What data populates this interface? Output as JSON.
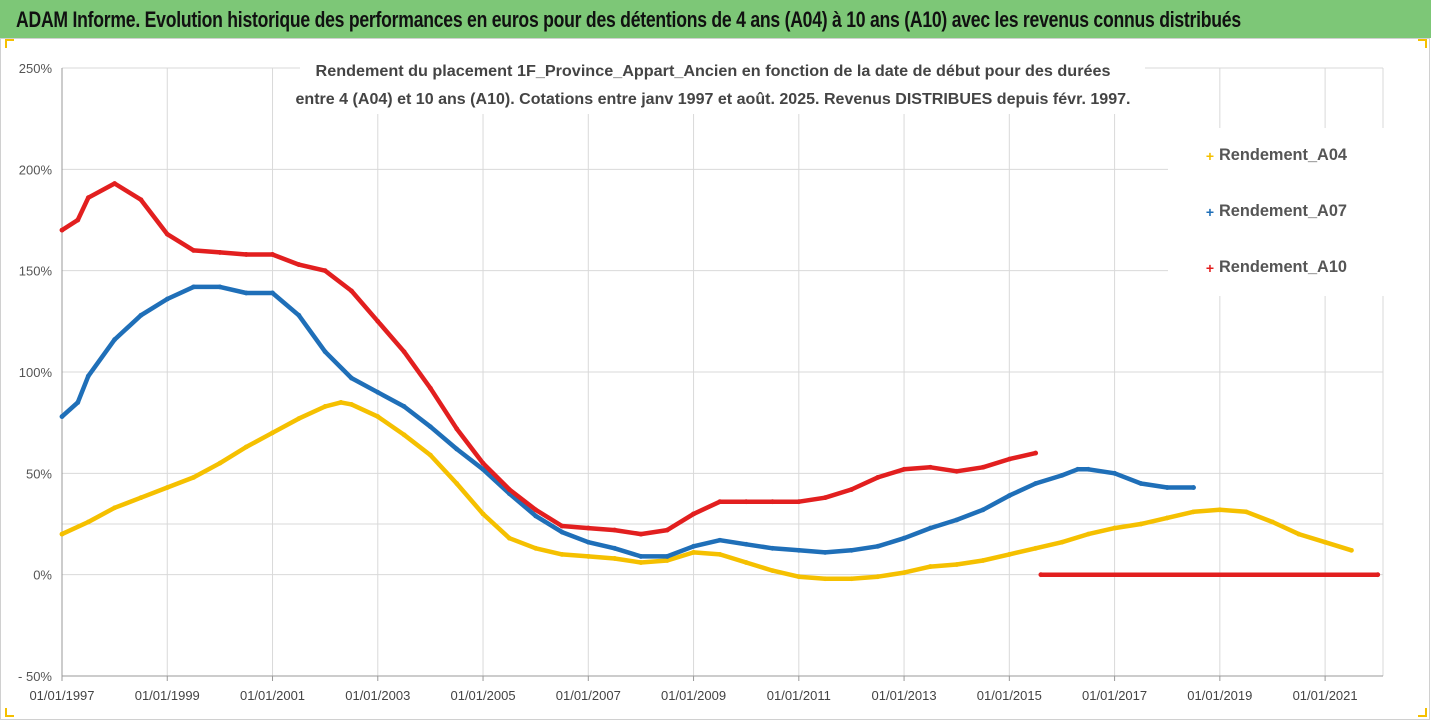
{
  "banner": {
    "title": "ADAM Informe. Evolution historique des performances en euros pour des détentions de 4 ans (A04) à 10 ans (A10) avec les revenus connus distribués"
  },
  "chart_data": {
    "type": "scatter",
    "title_line1": "Rendement du placement 1F_Province_Appart_Ancien en fonction de la date de début pour des durées",
    "title_line2": "entre 4 (A04) et 10 ans (A10). Cotations entre janv 1997 et août. 2025. Revenus DISTRIBUES depuis févr. 1997.",
    "y_tick_labels": [
      "250%",
      "200%",
      "150%",
      "100%",
      "50%",
      "0%",
      "- 50%"
    ],
    "y_ticks": [
      250,
      200,
      150,
      100,
      50,
      0,
      -50
    ],
    "x_tick_labels": [
      "01/01/1997",
      "01/01/1999",
      "01/01/2001",
      "01/01/2003",
      "01/01/2005",
      "01/01/2007",
      "01/01/2009",
      "01/01/2011",
      "01/01/2013",
      "01/01/2015",
      "01/01/2017",
      "01/01/2019",
      "01/01/2021"
    ],
    "x_ticks": [
      1997,
      1999,
      2001,
      2003,
      2005,
      2007,
      2009,
      2011,
      2013,
      2015,
      2017,
      2019,
      2021
    ],
    "xlim": [
      1997,
      2022.1
    ],
    "ylim": [
      -50,
      250
    ],
    "legend_position": "top-right",
    "series": [
      {
        "name": "Rendement_A04",
        "color": "#f5c000",
        "x": [
          1997.0,
          1997.5,
          1998.0,
          1998.5,
          1999.0,
          1999.5,
          2000.0,
          2000.5,
          2001.0,
          2001.5,
          2002.0,
          2002.3,
          2002.5,
          2003.0,
          2003.5,
          2004.0,
          2004.5,
          2005.0,
          2005.5,
          2006.0,
          2006.5,
          2007.0,
          2007.5,
          2008.0,
          2008.5,
          2009.0,
          2009.5,
          2010.0,
          2010.5,
          2011.0,
          2011.5,
          2012.0,
          2012.5,
          2013.0,
          2013.5,
          2014.0,
          2014.5,
          2015.0,
          2015.5,
          2016.0,
          2016.5,
          2017.0,
          2017.5,
          2018.0,
          2018.5,
          2019.0,
          2019.5,
          2020.0,
          2020.5,
          2021.0,
          2021.5
        ],
        "y": [
          20,
          26,
          33,
          38,
          43,
          48,
          55,
          63,
          70,
          77,
          83,
          85,
          84,
          78,
          69,
          59,
          45,
          30,
          18,
          13,
          10,
          9,
          8,
          6,
          7,
          11,
          10,
          6,
          2,
          -1,
          -2,
          -2,
          -1,
          1,
          4,
          5,
          7,
          10,
          13,
          16,
          20,
          23,
          25,
          28,
          31,
          32,
          31,
          26,
          20,
          16,
          12
        ]
      },
      {
        "name": "Rendement_A07",
        "color": "#1f6fb8",
        "x": [
          1997.0,
          1997.3,
          1997.5,
          1998.0,
          1998.5,
          1999.0,
          1999.5,
          2000.0,
          2000.5,
          2001.0,
          2001.5,
          2002.0,
          2002.5,
          2003.0,
          2003.5,
          2004.0,
          2004.5,
          2005.0,
          2005.5,
          2006.0,
          2006.5,
          2007.0,
          2007.5,
          2008.0,
          2008.5,
          2009.0,
          2009.5,
          2010.0,
          2010.5,
          2011.0,
          2011.5,
          2012.0,
          2012.5,
          2013.0,
          2013.5,
          2014.0,
          2014.5,
          2015.0,
          2015.5,
          2016.0,
          2016.3,
          2016.5,
          2017.0,
          2017.5,
          2018.0,
          2018.5
        ],
        "y": [
          78,
          85,
          98,
          116,
          128,
          136,
          142,
          142,
          139,
          139,
          128,
          110,
          97,
          90,
          83,
          73,
          62,
          52,
          40,
          29,
          21,
          16,
          13,
          9,
          9,
          14,
          17,
          15,
          13,
          12,
          11,
          12,
          14,
          18,
          23,
          27,
          32,
          39,
          45,
          49,
          52,
          52,
          50,
          45,
          43,
          43
        ]
      },
      {
        "name": "Rendement_A10",
        "color": "#e21f1f",
        "x": [
          1997.0,
          1997.3,
          1997.5,
          1998.0,
          1998.5,
          1999.0,
          1999.5,
          2000.0,
          2000.5,
          2001.0,
          2001.5,
          2002.0,
          2002.5,
          2003.0,
          2003.5,
          2004.0,
          2004.5,
          2005.0,
          2005.5,
          2006.0,
          2006.5,
          2007.0,
          2007.5,
          2008.0,
          2008.5,
          2009.0,
          2009.5,
          2010.0,
          2010.5,
          2011.0,
          2011.5,
          2012.0,
          2012.5,
          2013.0,
          2013.5,
          2014.0,
          2014.5,
          2015.0,
          2015.5
        ],
        "y": [
          170,
          175,
          186,
          193,
          185,
          168,
          160,
          159,
          158,
          158,
          153,
          150,
          140,
          125,
          110,
          92,
          72,
          55,
          42,
          32,
          24,
          23,
          22,
          20,
          22,
          30,
          36,
          36,
          36,
          36,
          38,
          42,
          48,
          52,
          53,
          51,
          53,
          57,
          60
        ]
      },
      {
        "name": "",
        "color": "#e21f1f",
        "x": [
          2015.6,
          2022.0
        ],
        "y": [
          0,
          0
        ]
      }
    ]
  }
}
